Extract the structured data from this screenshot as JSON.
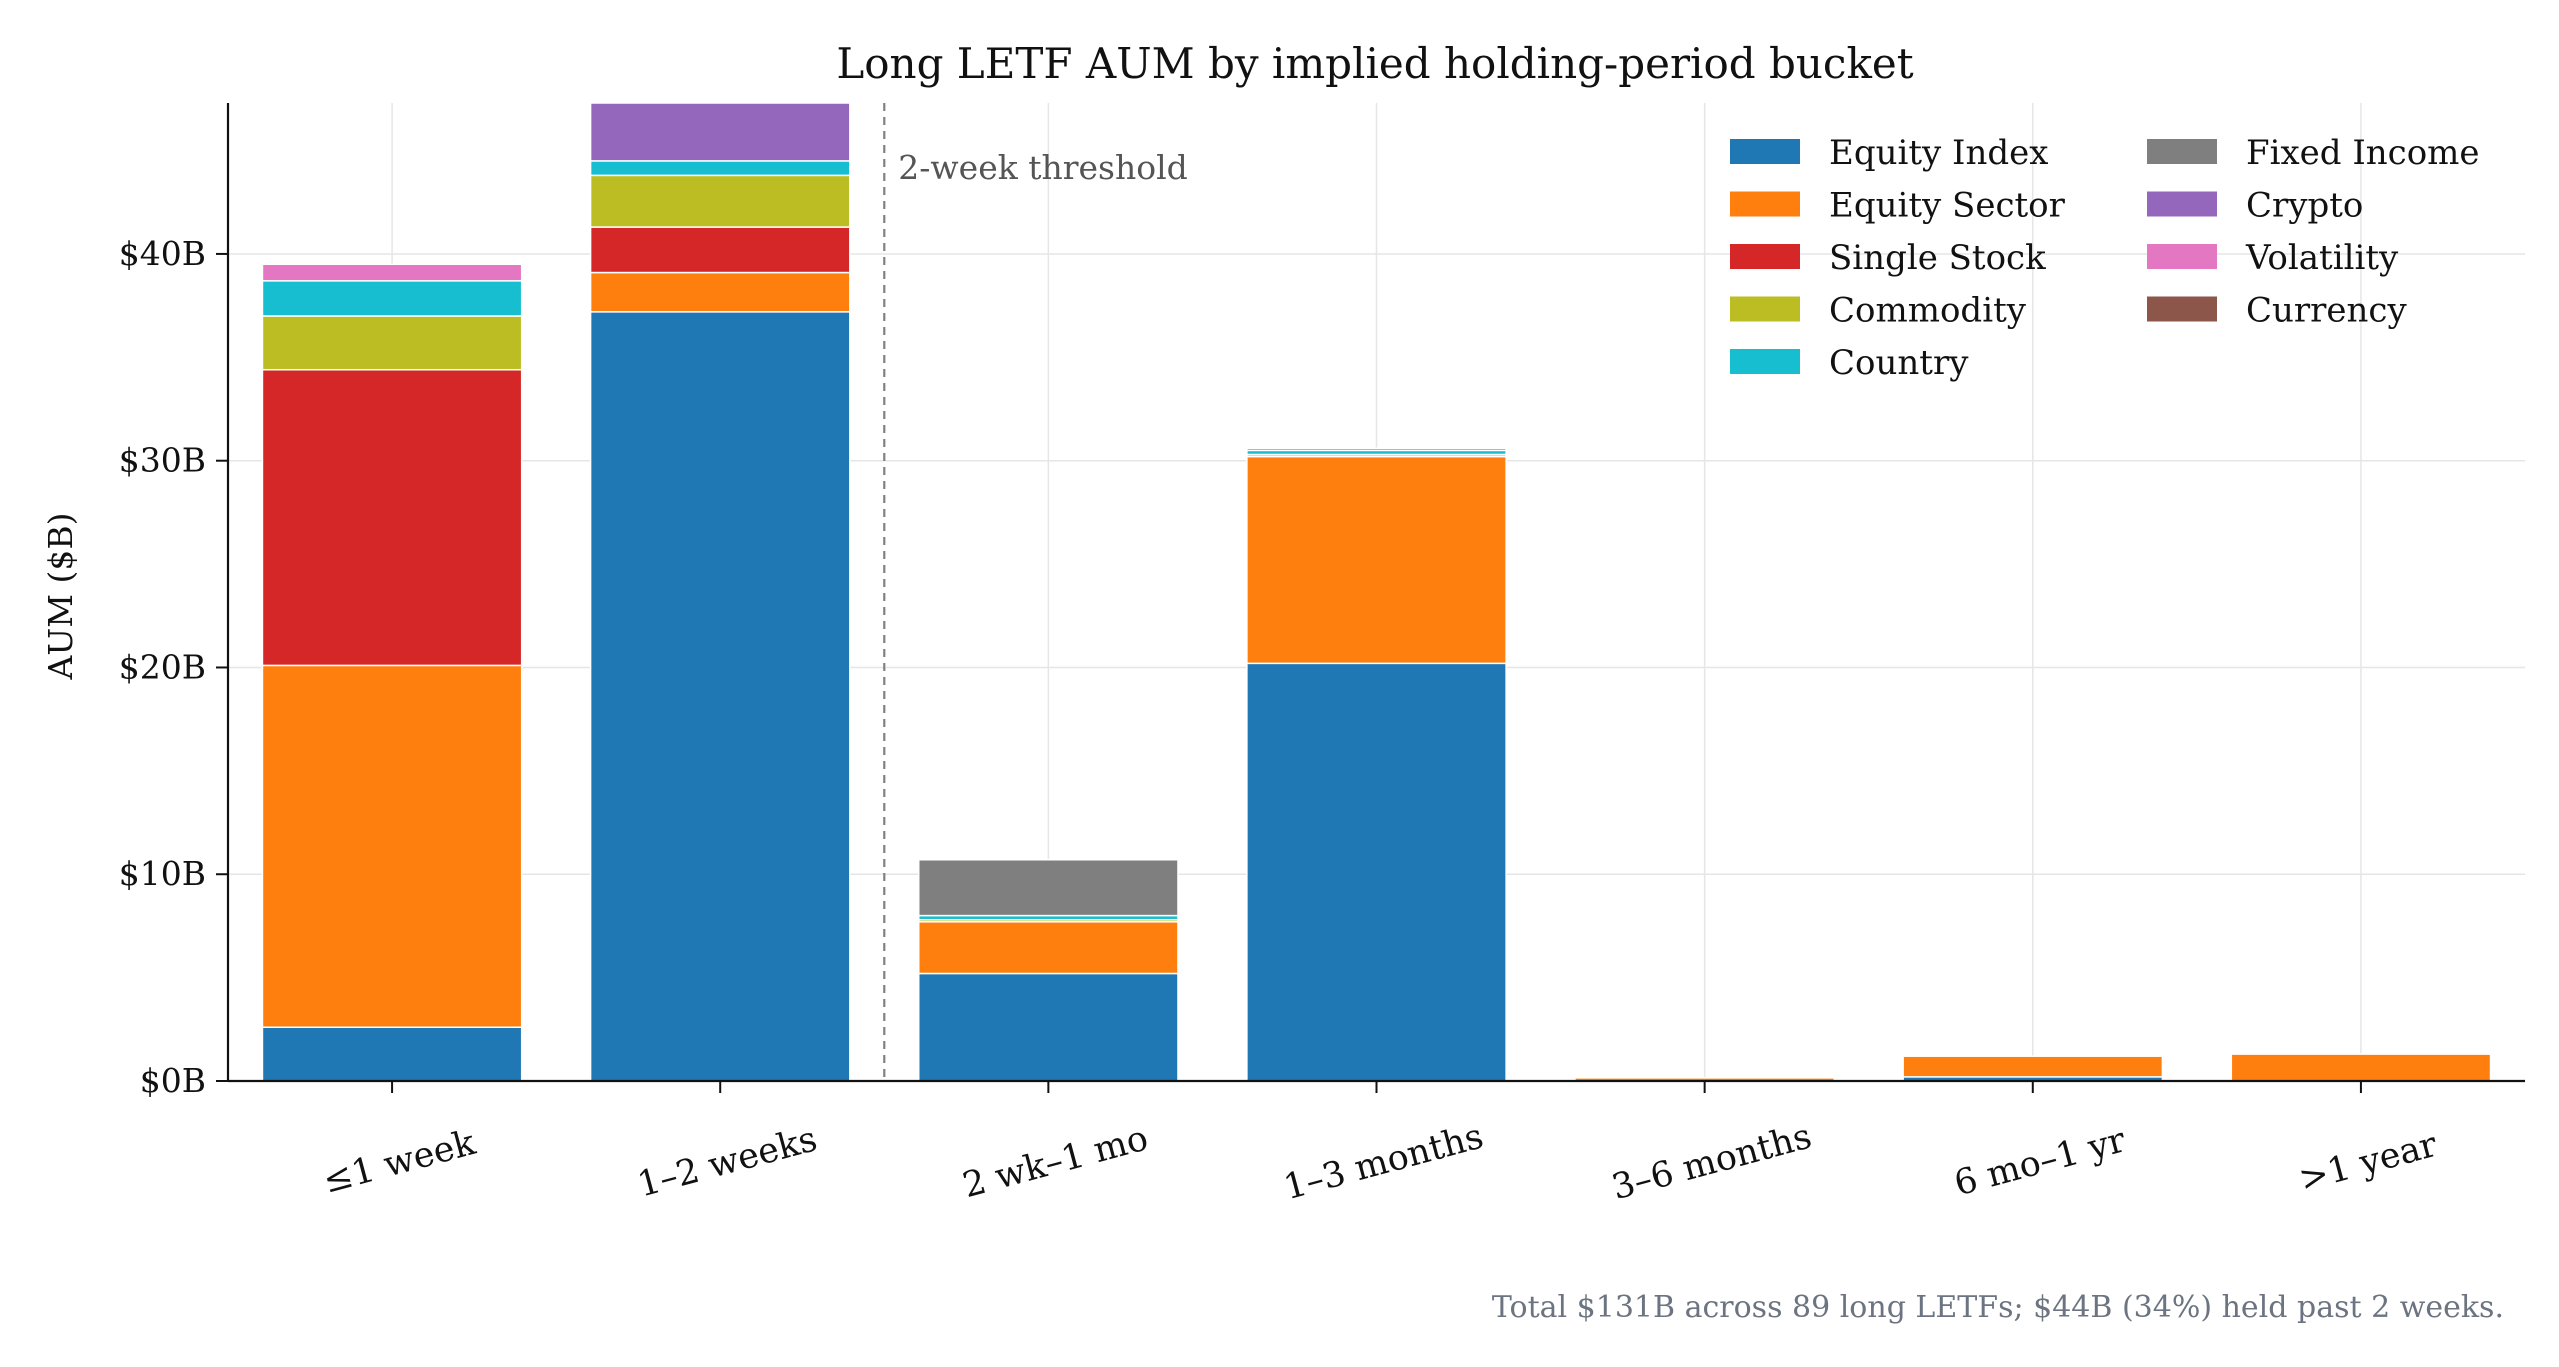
{
  "chart_data": {
    "type": "bar",
    "stacked": true,
    "title": "Long LETF AUM by implied holding-period bucket",
    "ylabel": "AUM ($B)",
    "xlabel": "",
    "ylim": [
      0,
      47.3
    ],
    "yticks": [
      0,
      10,
      20,
      30,
      40
    ],
    "ytick_labels": [
      "$0B",
      "$10B",
      "$20B",
      "$30B",
      "$40B"
    ],
    "grid": true,
    "legend_position": "top-right",
    "legend_columns": 2,
    "categories": [
      "≤1 week",
      "1–2 weeks",
      "2 wk–1 mo",
      "1–3 months",
      "3–6 months",
      "6 mo–1 yr",
      ">1 year"
    ],
    "series": [
      {
        "name": "Equity Index",
        "color": "#1f77b4",
        "values": [
          2.6,
          37.2,
          5.2,
          20.2,
          0.0,
          0.2,
          0.0
        ]
      },
      {
        "name": "Equity Sector",
        "color": "#ff7f0e",
        "values": [
          17.5,
          1.9,
          2.5,
          10.0,
          0.15,
          1.0,
          1.3
        ]
      },
      {
        "name": "Single Stock",
        "color": "#d62728",
        "values": [
          14.3,
          2.2,
          0.0,
          0.0,
          0.0,
          0.0,
          0.0
        ]
      },
      {
        "name": "Commodity",
        "color": "#bcbd22",
        "values": [
          2.6,
          2.5,
          0.1,
          0.1,
          0.0,
          0.0,
          0.0
        ]
      },
      {
        "name": "Country",
        "color": "#17becf",
        "values": [
          1.7,
          0.7,
          0.2,
          0.2,
          0.0,
          0.0,
          0.0
        ]
      },
      {
        "name": "Fixed Income",
        "color": "#7f7f7f",
        "values": [
          0.0,
          0.0,
          2.7,
          0.1,
          0.0,
          0.0,
          0.0
        ]
      },
      {
        "name": "Crypto",
        "color": "#9467bd",
        "values": [
          0.0,
          3.2,
          0.0,
          0.0,
          0.0,
          0.0,
          0.0
        ]
      },
      {
        "name": "Volatility",
        "color": "#e377c2",
        "values": [
          0.8,
          0.0,
          0.0,
          0.0,
          0.0,
          0.0,
          0.0
        ]
      },
      {
        "name": "Currency",
        "color": "#8c564b",
        "values": [
          0.0,
          0.0,
          0.0,
          0.0,
          0.0,
          0.0,
          0.0
        ]
      }
    ],
    "annotation": {
      "text": "2-week threshold"
    },
    "footnote": "Total $131B across 89 long LETFs; $44B (34%) held past 2 weeks."
  }
}
